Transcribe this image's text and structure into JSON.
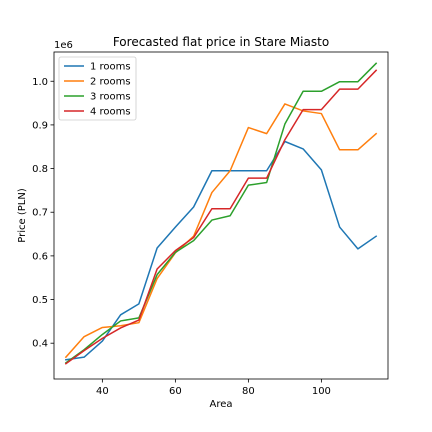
{
  "chart_data": {
    "type": "line",
    "title": "Forecasted flat price in Stare Miasto",
    "xlabel": "Area",
    "ylabel": "Price (PLN)",
    "y_offset_label": "1e6",
    "xlim": [
      26.75,
      118.25
    ],
    "ylim": [
      0.318,
      1.067
    ],
    "x_ticks": [
      40,
      60,
      80,
      100
    ],
    "y_ticks": [
      0.4,
      0.5,
      0.6,
      0.7,
      0.8,
      0.9,
      1.0
    ],
    "x_tick_labels": [
      "40",
      "60",
      "80",
      "100"
    ],
    "y_tick_labels": [
      "0.4",
      "0.5",
      "0.6",
      "0.7",
      "0.8",
      "0.9",
      "1.0"
    ],
    "grid": false,
    "legend_position": "top-left",
    "x": [
      30,
      35,
      40,
      45,
      50,
      55,
      60,
      65,
      70,
      75,
      80,
      85,
      90,
      95,
      100,
      105,
      110,
      115
    ],
    "series": [
      {
        "name": "1 rooms",
        "color": "#1f77b4",
        "values": [
          0.362,
          0.368,
          0.405,
          0.465,
          0.49,
          0.618,
          0.666,
          0.712,
          0.795,
          0.795,
          0.795,
          0.795,
          0.862,
          0.845,
          0.797,
          0.666,
          0.616,
          0.645
        ]
      },
      {
        "name": "2 rooms",
        "color": "#ff7f0e",
        "values": [
          0.368,
          0.415,
          0.436,
          0.44,
          0.447,
          0.548,
          0.607,
          0.645,
          0.745,
          0.795,
          0.894,
          0.88,
          0.948,
          0.932,
          0.926,
          0.843,
          0.843,
          0.88
        ]
      },
      {
        "name": "3 rooms",
        "color": "#2ca02c",
        "values": [
          0.355,
          0.385,
          0.42,
          0.451,
          0.458,
          0.557,
          0.608,
          0.635,
          0.682,
          0.692,
          0.762,
          0.768,
          0.902,
          0.977,
          0.977,
          0.999,
          0.999,
          1.041
        ]
      },
      {
        "name": "4 rooms",
        "color": "#d62728",
        "values": [
          0.353,
          0.383,
          0.411,
          0.435,
          0.453,
          0.57,
          0.612,
          0.642,
          0.708,
          0.708,
          0.778,
          0.778,
          0.866,
          0.935,
          0.935,
          0.982,
          0.982,
          1.025
        ]
      }
    ]
  }
}
